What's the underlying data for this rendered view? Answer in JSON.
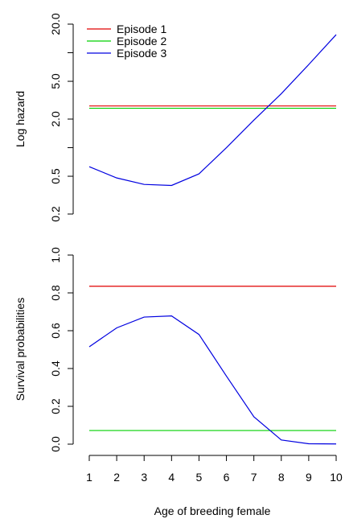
{
  "chart_data": [
    {
      "type": "line",
      "title": "",
      "xlabel": "",
      "ylabel": "Log hazard",
      "yscale": "log",
      "ylim": [
        0.2,
        20.0
      ],
      "yticks": [
        0.2,
        0.5,
        2.0,
        5.0,
        20.0
      ],
      "yticks_minor": [
        1.0,
        10.0
      ],
      "ytick_labels": [
        "0.2",
        "0.5",
        "2.0",
        "5.0",
        "20.0"
      ],
      "xlim": [
        1,
        10
      ],
      "grid": false,
      "legend": {
        "position": "top-left",
        "entries": [
          "Episode 1",
          "Episode 2",
          "Episode 3"
        ]
      },
      "x": [
        1,
        2,
        3,
        4,
        5,
        6,
        7,
        8,
        9,
        10
      ],
      "series": [
        {
          "name": "Episode 1",
          "color": "#e00000",
          "values": [
            2.75,
            2.75,
            2.75,
            2.75,
            2.75,
            2.75,
            2.75,
            2.75,
            2.75,
            2.75
          ]
        },
        {
          "name": "Episode 2",
          "color": "#00d000",
          "values": [
            2.6,
            2.6,
            2.6,
            2.6,
            2.6,
            2.6,
            2.6,
            2.6,
            2.6,
            2.6
          ]
        },
        {
          "name": "Episode 3",
          "color": "#0000e0",
          "values": [
            0.63,
            0.48,
            0.41,
            0.4,
            0.53,
            1.0,
            1.95,
            3.7,
            7.5,
            15.5
          ]
        }
      ]
    },
    {
      "type": "line",
      "title": "",
      "xlabel": "Age of breeding female",
      "ylabel": "Survival probabilities",
      "ylim": [
        0.0,
        1.0
      ],
      "yticks": [
        0.0,
        0.2,
        0.4,
        0.6,
        0.8,
        1.0
      ],
      "ytick_labels": [
        "0.0",
        "0.2",
        "0.4",
        "0.6",
        "0.8",
        "1.0"
      ],
      "xlim": [
        1,
        10
      ],
      "xticks": [
        1,
        2,
        3,
        4,
        5,
        6,
        7,
        8,
        9,
        10
      ],
      "xtick_labels": [
        "1",
        "2",
        "3",
        "4",
        "5",
        "6",
        "7",
        "8",
        "9",
        "10"
      ],
      "grid": false,
      "x": [
        1,
        2,
        3,
        4,
        5,
        6,
        7,
        8,
        9,
        10
      ],
      "series": [
        {
          "name": "Episode 1",
          "color": "#e00000",
          "values": [
            0.835,
            0.835,
            0.835,
            0.835,
            0.835,
            0.835,
            0.835,
            0.835,
            0.835,
            0.835
          ]
        },
        {
          "name": "Episode 2",
          "color": "#00d000",
          "values": [
            0.072,
            0.072,
            0.072,
            0.072,
            0.072,
            0.072,
            0.072,
            0.072,
            0.072,
            0.072
          ]
        },
        {
          "name": "Episode 3",
          "color": "#0000e0",
          "values": [
            0.515,
            0.615,
            0.672,
            0.678,
            0.58,
            0.36,
            0.145,
            0.022,
            0.002,
            0.001
          ]
        }
      ]
    }
  ]
}
